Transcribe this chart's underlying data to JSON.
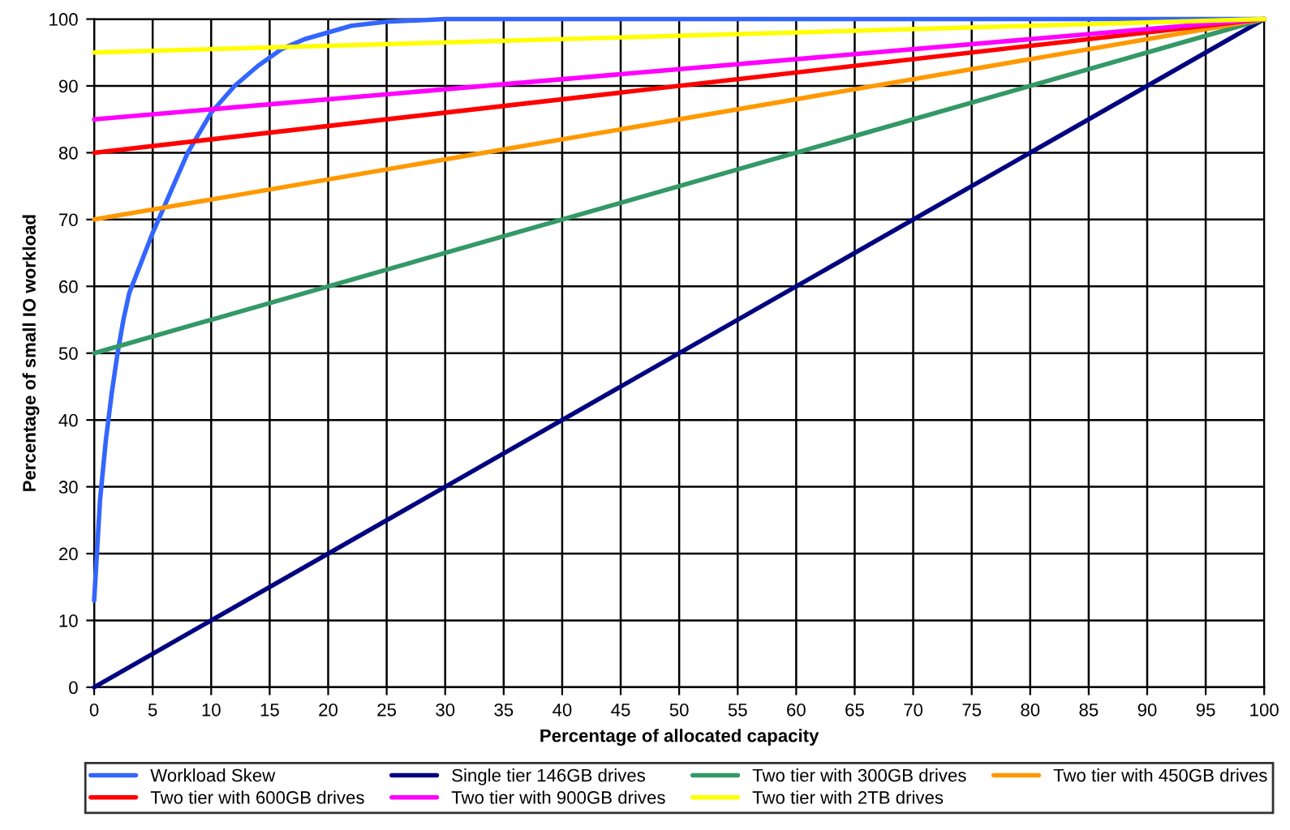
{
  "chart_data": {
    "type": "line",
    "xlabel": "Percentage of allocated capacity",
    "ylabel": "Percentage of small IO workload",
    "xlim": [
      0,
      100
    ],
    "ylim": [
      0,
      100
    ],
    "xticks": [
      0,
      5,
      10,
      15,
      20,
      25,
      30,
      35,
      40,
      45,
      50,
      55,
      60,
      65,
      70,
      75,
      80,
      85,
      90,
      95,
      100
    ],
    "yticks": [
      0,
      10,
      20,
      30,
      40,
      50,
      60,
      70,
      80,
      90,
      100
    ],
    "grid": true,
    "legend": "bottom",
    "marker": "none",
    "line_style": "solid",
    "series": [
      {
        "name": "Workload Skew",
        "color": "#3366ff",
        "x": [
          0,
          0.5,
          1,
          1.5,
          2,
          2.5,
          3,
          4,
          5,
          6,
          7,
          8,
          9,
          10,
          12,
          14,
          16,
          18,
          20,
          22,
          25,
          30,
          100
        ],
        "values": [
          13,
          28,
          37,
          44,
          50,
          55,
          59,
          63.5,
          68,
          72,
          76,
          80,
          83,
          86,
          90,
          93,
          95.5,
          97,
          98,
          99,
          99.6,
          100,
          100
        ]
      },
      {
        "name": "Single tier 146GB drives",
        "color": "#000080",
        "x": [
          0,
          100
        ],
        "values": [
          0,
          100
        ]
      },
      {
        "name": "Two tier with 300GB drives",
        "color": "#339966",
        "x": [
          0,
          100
        ],
        "values": [
          50,
          100
        ]
      },
      {
        "name": "Two tier with 450GB drives",
        "color": "#ff9900",
        "x": [
          0,
          100
        ],
        "values": [
          70,
          100
        ]
      },
      {
        "name": "Two tier with 600GB drives",
        "color": "#ff0000",
        "x": [
          0,
          100
        ],
        "values": [
          80,
          100
        ]
      },
      {
        "name": "Two tier with 900GB drives",
        "color": "#ff00ff",
        "x": [
          0,
          100
        ],
        "values": [
          85,
          100
        ]
      },
      {
        "name": "Two tier with 2TB drives",
        "color": "#ffff00",
        "x": [
          0,
          100
        ],
        "values": [
          95,
          100
        ]
      }
    ]
  }
}
